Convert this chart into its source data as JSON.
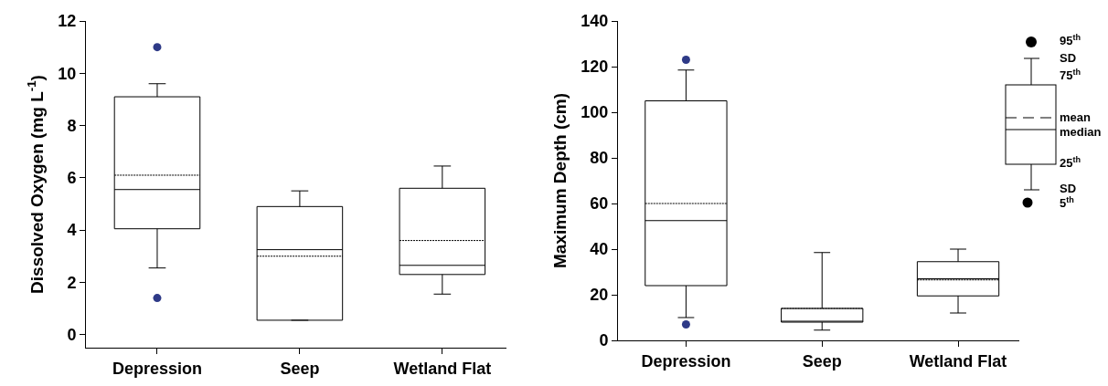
{
  "chart_data": [
    {
      "type": "box",
      "ylabel": "Dissolved Oxygen (mg L$^{-1}$)",
      "categories": [
        "Depression",
        "Seep",
        "Wetland Flat"
      ],
      "ylim": [
        -0.5,
        12
      ],
      "yticks": [
        0,
        2,
        4,
        6,
        8,
        10,
        12
      ],
      "grid": false,
      "series": [
        {
          "color": "#ffffff",
          "boxes": [
            {
              "low": 2.55,
              "q1": 4.05,
              "median": 5.55,
              "q3": 9.1,
              "high": 9.6,
              "mean": 6.1
            },
            {
              "low": 0.55,
              "q1": 0.55,
              "median": 3.25,
              "q3": 4.9,
              "high": 5.5,
              "mean": 3.0
            },
            {
              "low": 1.55,
              "q1": 2.3,
              "median": 2.65,
              "q3": 5.6,
              "high": 6.45,
              "mean": 3.6
            }
          ]
        },
        {
          "type": "scatter",
          "color": "#2e3a87",
          "x": [
            "Depression",
            "Depression"
          ],
          "values": [
            1.4,
            11.0
          ]
        }
      ]
    },
    {
      "type": "box",
      "ylabel": "Maximum Depth (cm)",
      "categories": [
        "Depression",
        "Seep",
        "Wetland Flat"
      ],
      "ylim": [
        0,
        140
      ],
      "yticks": [
        0,
        20,
        40,
        60,
        80,
        100,
        120,
        140
      ],
      "grid": false,
      "series": [
        {
          "color": "#ffffff",
          "boxes": [
            {
              "low": 10,
              "q1": 24,
              "median": 52.5,
              "q3": 105,
              "high": 118.5,
              "mean": 60
            },
            {
              "low": 4.5,
              "q1": 8,
              "median": 8,
              "q3": 14,
              "high": 38.5,
              "mean": 14
            },
            {
              "low": 12,
              "q1": 19.5,
              "median": 27,
              "q3": 34.5,
              "high": 40,
              "mean": 26.5
            }
          ]
        },
        {
          "type": "scatter",
          "color": "#2e3a87",
          "x": [
            "Depression",
            "Depression"
          ],
          "values": [
            7,
            123
          ]
        }
      ],
      "annotations": [
        "95$^{th}$",
        "SD",
        "75$^{th}$",
        "mean",
        "median",
        "25$^{th}$",
        "SD",
        "5$^{th}$"
      ]
    }
  ]
}
